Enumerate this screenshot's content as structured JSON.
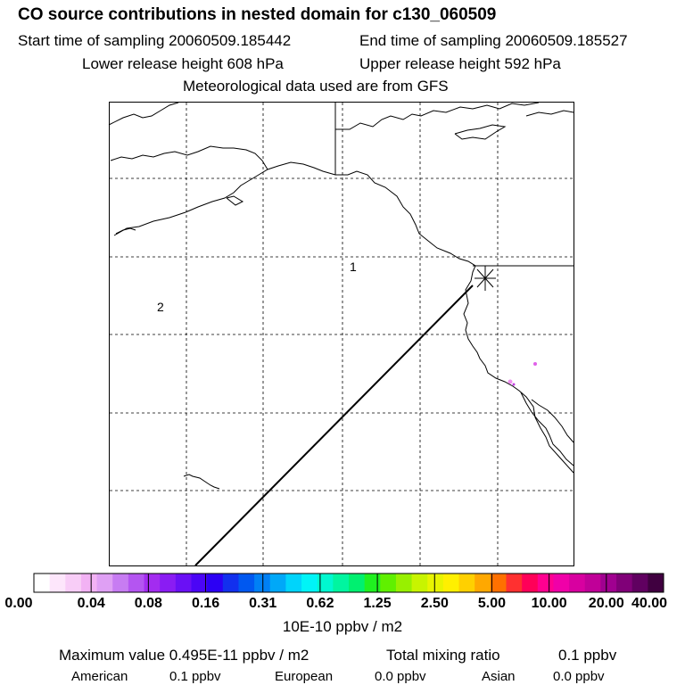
{
  "header": {
    "title": "CO  source contributions in nested domain for c130_060509",
    "start_label": "Start time of sampling 20060509.185442",
    "end_label": "End time of sampling 20060509.185527",
    "lower_label": "Lower release height  608 hPa",
    "upper_label": "Upper release height  592 hPa",
    "met_label": "Meteorological data used are from GFS"
  },
  "map": {
    "region_labels": [
      "1",
      "2"
    ],
    "release_marker": "asterisk-icon"
  },
  "colorbar": {
    "ticks": [
      "0.00",
      "0.04",
      "0.08",
      "0.16",
      "0.31",
      "0.62",
      "1.25",
      "2.50",
      "5.00",
      "10.00",
      "20.00",
      "40.00"
    ],
    "colors": [
      "#ffffff",
      "#fde6fb",
      "#f8cdf7",
      "#f2b2f4",
      "#dfa0f4",
      "#c77cf2",
      "#b455f1",
      "#a32cf0",
      "#8a1cf3",
      "#6a10f5",
      "#4b05f6",
      "#2c00f4",
      "#1230ee",
      "#0058f0",
      "#0080f5",
      "#00a8f8",
      "#00d4fb",
      "#00f4f7",
      "#00f8d0",
      "#00f5a0",
      "#00f070",
      "#20f020",
      "#60f000",
      "#98f000",
      "#c8f400",
      "#e8f400",
      "#fff000",
      "#ffd000",
      "#ffa800",
      "#ff7000",
      "#ff3030",
      "#ff0058",
      "#ff0090",
      "#f000a8",
      "#d800a0",
      "#c00098",
      "#a00090",
      "#800078",
      "#600060",
      "#400040"
    ],
    "units": "10E-10 ppbv / m2"
  },
  "footer": {
    "max_label": "Maximum value  0.495E-11 ppbv / m2",
    "total_label": "Total mixing ratio",
    "total_value": "0.1 ppbv",
    "american_label": "American",
    "american_value": "0.1 ppbv",
    "european_label": "European",
    "european_value": "0.0 ppbv",
    "asian_label": "Asian",
    "asian_value": "0.0 ppbv"
  }
}
